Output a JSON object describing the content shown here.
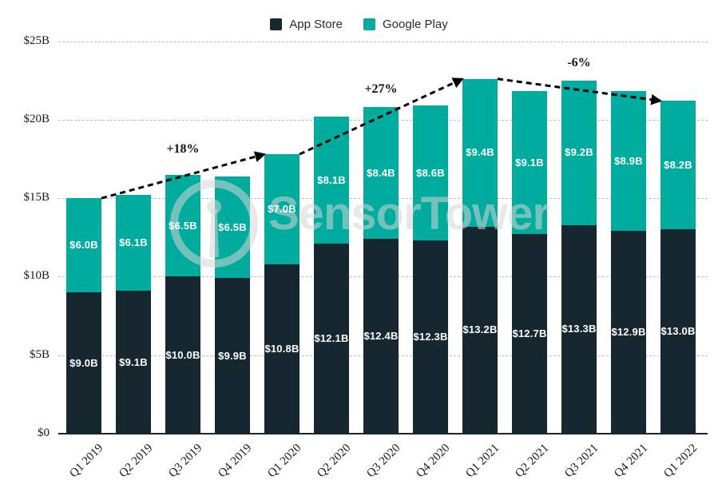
{
  "legend": {
    "items": [
      {
        "label": "App Store",
        "color": "#16272F"
      },
      {
        "label": "Google Play",
        "color": "#00AC9E"
      }
    ]
  },
  "watermark": {
    "text": "SensorTower"
  },
  "chart_data": {
    "type": "bar",
    "stacked": true,
    "title": "",
    "xlabel": "",
    "ylabel": "",
    "categories": [
      "Q1 2019",
      "Q2 2019",
      "Q3 2019",
      "Q4 2019",
      "Q1 2020",
      "Q2 2020",
      "Q3 2020",
      "Q4 2020",
      "Q1 2021",
      "Q2 2021",
      "Q3 2021",
      "Q4 2021",
      "Q1 2022"
    ],
    "series": [
      {
        "name": "App Store",
        "color": "#16272F",
        "values": [
          9.0,
          9.1,
          10.0,
          9.9,
          10.8,
          12.1,
          12.4,
          12.3,
          13.2,
          12.7,
          13.3,
          12.9,
          13.0
        ],
        "labels": [
          "$9.0B",
          "$9.1B",
          "$10.0B",
          "$9.9B",
          "$10.8B",
          "$12.1B",
          "$12.4B",
          "$12.3B",
          "$13.2B",
          "$12.7B",
          "$13.3B",
          "$12.9B",
          "$13.0B"
        ]
      },
      {
        "name": "Google Play",
        "color": "#00AC9E",
        "values": [
          6.0,
          6.1,
          6.5,
          6.5,
          7.0,
          8.1,
          8.4,
          8.6,
          9.4,
          9.1,
          9.2,
          8.9,
          8.2
        ],
        "labels": [
          "$6.0B",
          "$6.1B",
          "$6.5B",
          "$6.5B",
          "$7.0B",
          "$8.1B",
          "$8.4B",
          "$8.6B",
          "$9.4B",
          "$9.1B",
          "$9.2B",
          "$8.9B",
          "$8.2B"
        ]
      }
    ],
    "y_ticks": [
      {
        "value": 0,
        "label": "$0"
      },
      {
        "value": 5,
        "label": "$5B"
      },
      {
        "value": 10,
        "label": "$10B"
      },
      {
        "value": 15,
        "label": "$15B"
      },
      {
        "value": 20,
        "label": "$20B"
      },
      {
        "value": 25,
        "label": "$25B"
      }
    ],
    "ylim": [
      0,
      25
    ],
    "grid": "horizontal-dashed",
    "legend_position": "top-center",
    "annotations": [
      {
        "text": "+18%",
        "from_index": 0,
        "to_index": 4
      },
      {
        "text": "+27%",
        "from_index": 4,
        "to_index": 8
      },
      {
        "text": "-6%",
        "from_index": 8,
        "to_index": 12
      }
    ]
  }
}
